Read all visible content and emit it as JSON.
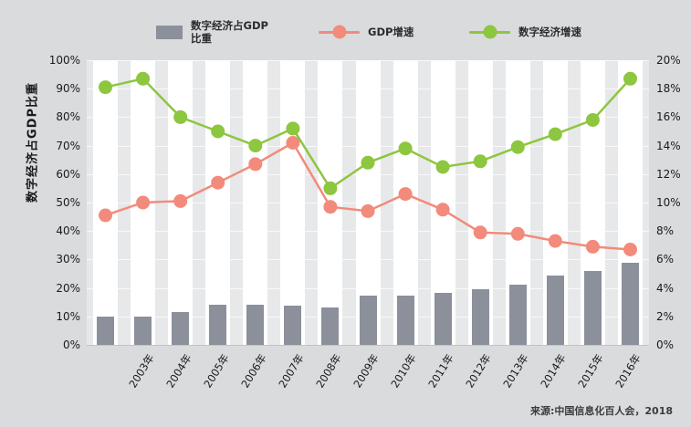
{
  "legend": {
    "bar_label_line1": "数字经济占GDP",
    "bar_label_line2": "比重",
    "gdp_label": "GDP增速",
    "digital_label": "数字经济增速"
  },
  "y_axis_title": "数字经济占GDP比重",
  "source_note": "来源:中国信息化百人会，2018",
  "colors": {
    "page_bg": "#dadbdd",
    "plot_bg": "#e7e8ea",
    "stripe": "#ffffff",
    "bar": "#8b909b",
    "gdp_line": "#f28b7b",
    "digital_line": "#8dc63f",
    "tick_text": "#1a1a1a"
  },
  "chart_data": {
    "type": "bar",
    "subtype": "combo-bar-line",
    "title": "",
    "x_labels": [
      "",
      "2003年",
      "2004年",
      "2005年",
      "2006年",
      "2007年",
      "2008年",
      "2009年",
      "2010年",
      "2011年",
      "2012年",
      "2013年",
      "2014年",
      "2015年",
      "2016年"
    ],
    "series": [
      {
        "name": "数字经济占GDP比重",
        "type": "bar",
        "axis": "left",
        "unit": "%",
        "values": [
          10,
          10,
          11.4,
          14.2,
          14.2,
          13.7,
          13.1,
          17.4,
          17.4,
          18.4,
          19.5,
          21,
          24.2,
          26,
          29
        ]
      },
      {
        "name": "GDP增速",
        "type": "line",
        "axis": "right",
        "unit": "%",
        "values": [
          9.1,
          10.0,
          10.1,
          11.4,
          12.7,
          14.2,
          9.7,
          9.4,
          10.6,
          9.5,
          7.9,
          7.8,
          7.3,
          6.9,
          6.7
        ]
      },
      {
        "name": "数字经济增速",
        "type": "line",
        "axis": "right",
        "unit": "%",
        "values": [
          18.1,
          18.7,
          16.0,
          15.0,
          14.0,
          15.2,
          11.0,
          12.8,
          13.8,
          12.5,
          12.9,
          13.9,
          14.8,
          15.8,
          18.7
        ]
      }
    ],
    "left_axis": {
      "title": "数字经济占GDP比重",
      "min": 0,
      "max": 100,
      "step": 10,
      "tick_suffix": "%"
    },
    "right_axis": {
      "min": 0,
      "max": 20,
      "step": 2,
      "tick_suffix": "%"
    },
    "grid": "faint-horizontal-white",
    "legend_position": "top"
  }
}
